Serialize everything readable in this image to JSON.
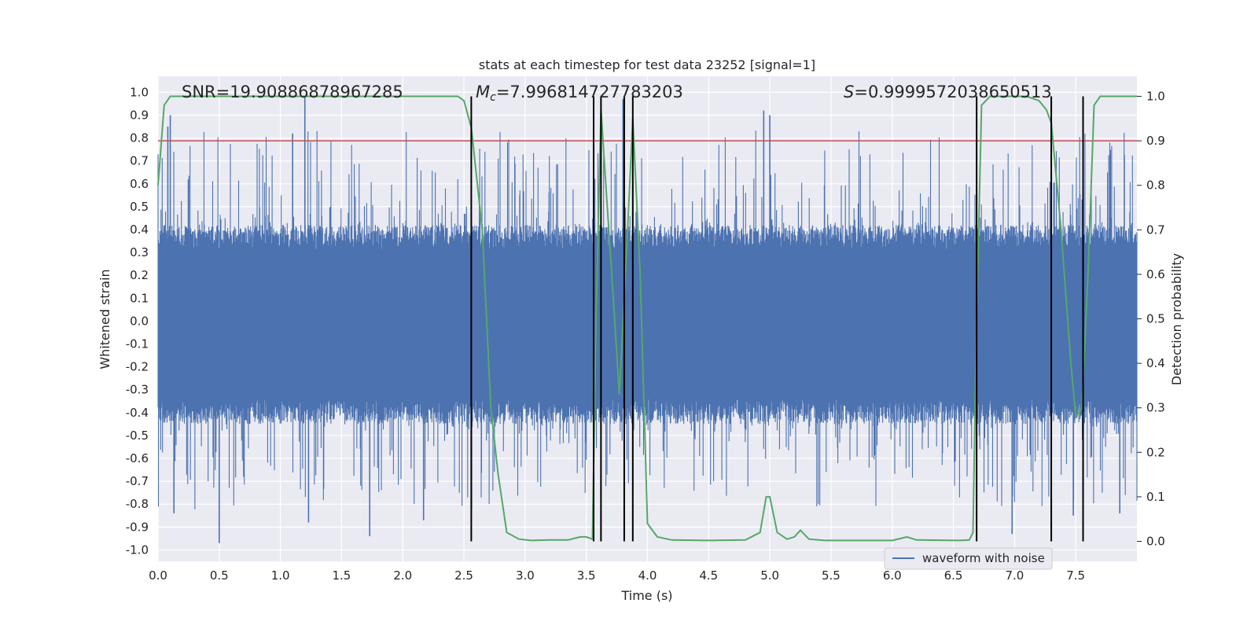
{
  "chart_data": {
    "type": "line",
    "title": "stats at each timestep for test data 23252 [signal=1]",
    "xlabel": "Time (s)",
    "ylabel": "Whitened strain",
    "y2label": "Detection probability",
    "xlim": [
      0.0,
      8.0
    ],
    "ylim": [
      -1.05,
      1.07
    ],
    "y2lim": [
      -0.045,
      1.045
    ],
    "xticks": [
      "0.0",
      "0.5",
      "1.0",
      "1.5",
      "2.0",
      "2.5",
      "3.0",
      "3.5",
      "4.0",
      "4.5",
      "5.0",
      "5.5",
      "6.0",
      "6.5",
      "7.0",
      "7.5"
    ],
    "yticks": [
      "-1.0",
      "-0.9",
      "-0.8",
      "-0.7",
      "-0.6",
      "-0.5",
      "-0.4",
      "-0.3",
      "-0.2",
      "-0.1",
      "0.0",
      "0.1",
      "0.2",
      "0.3",
      "0.4",
      "0.5",
      "0.6",
      "0.7",
      "0.8",
      "0.9",
      "1.0"
    ],
    "y2ticks": [
      "0.0",
      "0.1",
      "0.2",
      "0.3",
      "0.4",
      "0.5",
      "0.6",
      "0.7",
      "0.8",
      "0.9",
      "1.0"
    ],
    "grid": true,
    "legend": {
      "position": "lower-right",
      "entries": [
        "waveform with noise"
      ]
    },
    "annotations": {
      "snr": "SNR=19.90886878967285",
      "mc_symbol": "M",
      "mc_sub": "c",
      "mc_value": "=7.996814727783203",
      "s_symbol": "S",
      "s_value": "=0.9999572038650513"
    },
    "threshold": {
      "axis": "secondary",
      "value": 0.9,
      "color": "#c44e52"
    },
    "vertical_lines": [
      2.56,
      3.56,
      3.62,
      3.81,
      3.88,
      6.69,
      7.3,
      7.56
    ],
    "series": [
      {
        "name": "waveform with noise",
        "axis": "primary",
        "color": "#4c72b0",
        "kind": "noise",
        "x_range": [
          0.0,
          8.0
        ],
        "typical_range": [
          -0.45,
          0.42
        ],
        "extreme_range": [
          -0.97,
          0.98
        ],
        "peaks": [
          {
            "x": 0.08,
            "y": 0.85
          },
          {
            "x": 0.1,
            "y": 0.9
          },
          {
            "x": 1.2,
            "y": 0.98
          },
          {
            "x": 1.1,
            "y": 0.82
          },
          {
            "x": 3.8,
            "y": 0.97
          },
          {
            "x": 4.95,
            "y": 0.92
          },
          {
            "x": 5.0,
            "y": 0.9
          },
          {
            "x": 0.5,
            "y": -0.97
          },
          {
            "x": 1.23,
            "y": -0.88
          },
          {
            "x": 1.73,
            "y": -0.94
          },
          {
            "x": 2.17,
            "y": -0.87
          },
          {
            "x": 0.13,
            "y": -0.84
          },
          {
            "x": 6.98,
            "y": -0.93
          },
          {
            "x": 7.48,
            "y": -0.85
          },
          {
            "x": 7.86,
            "y": -0.84
          }
        ]
      },
      {
        "name": "detection probability",
        "axis": "secondary",
        "color": "#55a868",
        "x": [
          0.0,
          0.05,
          0.1,
          0.2,
          0.5,
          1.0,
          1.5,
          2.0,
          2.3,
          2.45,
          2.5,
          2.56,
          2.65,
          2.72,
          2.78,
          2.85,
          2.95,
          3.05,
          3.2,
          3.35,
          3.45,
          3.5,
          3.55,
          3.58,
          3.62,
          3.66,
          3.72,
          3.77,
          3.82,
          3.88,
          3.94,
          4.0,
          4.08,
          4.2,
          4.5,
          4.8,
          4.92,
          4.97,
          5.0,
          5.06,
          5.14,
          5.2,
          5.25,
          5.32,
          5.45,
          6.0,
          6.12,
          6.2,
          6.55,
          6.63,
          6.66,
          6.69,
          6.73,
          6.8,
          6.95,
          7.1,
          7.2,
          7.26,
          7.3,
          7.38,
          7.46,
          7.5,
          7.55,
          7.6,
          7.65,
          7.7,
          8.0
        ],
        "y": [
          0.8,
          0.98,
          1.0,
          1.0,
          1.0,
          1.0,
          1.0,
          1.0,
          1.0,
          1.0,
          0.99,
          0.93,
          0.7,
          0.3,
          0.15,
          0.02,
          0.005,
          0.002,
          0.003,
          0.003,
          0.01,
          0.01,
          0.005,
          0.5,
          0.97,
          0.8,
          0.55,
          0.33,
          0.6,
          0.95,
          0.6,
          0.04,
          0.01,
          0.003,
          0.002,
          0.003,
          0.02,
          0.1,
          0.1,
          0.02,
          0.005,
          0.01,
          0.025,
          0.005,
          0.002,
          0.002,
          0.01,
          0.003,
          0.002,
          0.003,
          0.02,
          0.5,
          0.98,
          1.0,
          1.0,
          1.0,
          0.99,
          0.97,
          0.94,
          0.7,
          0.4,
          0.28,
          0.3,
          0.6,
          0.98,
          1.0,
          1.0
        ]
      }
    ]
  }
}
